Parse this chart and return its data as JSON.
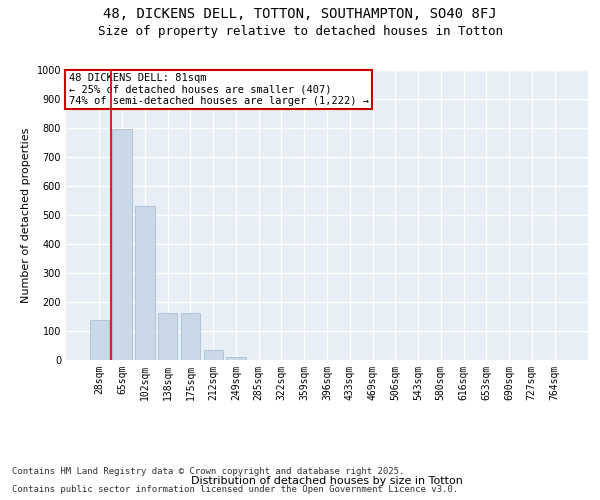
{
  "title_line1": "48, DICKENS DELL, TOTTON, SOUTHAMPTON, SO40 8FJ",
  "title_line2": "Size of property relative to detached houses in Totton",
  "xlabel": "Distribution of detached houses by size in Totton",
  "ylabel": "Number of detached properties",
  "categories": [
    "28sqm",
    "65sqm",
    "102sqm",
    "138sqm",
    "175sqm",
    "212sqm",
    "249sqm",
    "285sqm",
    "322sqm",
    "359sqm",
    "396sqm",
    "433sqm",
    "469sqm",
    "506sqm",
    "543sqm",
    "580sqm",
    "616sqm",
    "653sqm",
    "690sqm",
    "727sqm",
    "764sqm"
  ],
  "values": [
    137,
    795,
    530,
    163,
    163,
    35,
    10,
    0,
    0,
    0,
    0,
    0,
    0,
    0,
    0,
    0,
    0,
    0,
    0,
    0,
    0
  ],
  "bar_color": "#c9d9e8",
  "bar_edgecolor": "#a0b8cc",
  "vline_x_index": 1,
  "vline_color": "#cc0000",
  "annotation_text": "48 DICKENS DELL: 81sqm\n← 25% of detached houses are smaller (407)\n74% of semi-detached houses are larger (1,222) →",
  "annotation_box_color": "#ffffff",
  "annotation_box_edgecolor": "#cc0000",
  "ylim": [
    0,
    1000
  ],
  "yticks": [
    0,
    100,
    200,
    300,
    400,
    500,
    600,
    700,
    800,
    900,
    1000
  ],
  "background_color": "#e8eef5",
  "grid_color": "#ffffff",
  "footer_line1": "Contains HM Land Registry data © Crown copyright and database right 2025.",
  "footer_line2": "Contains public sector information licensed under the Open Government Licence v3.0.",
  "title_fontsize": 10,
  "subtitle_fontsize": 9,
  "axis_label_fontsize": 8,
  "ylabel_fontsize": 8,
  "tick_fontsize": 7,
  "annotation_fontsize": 7.5,
  "footer_fontsize": 6.5
}
